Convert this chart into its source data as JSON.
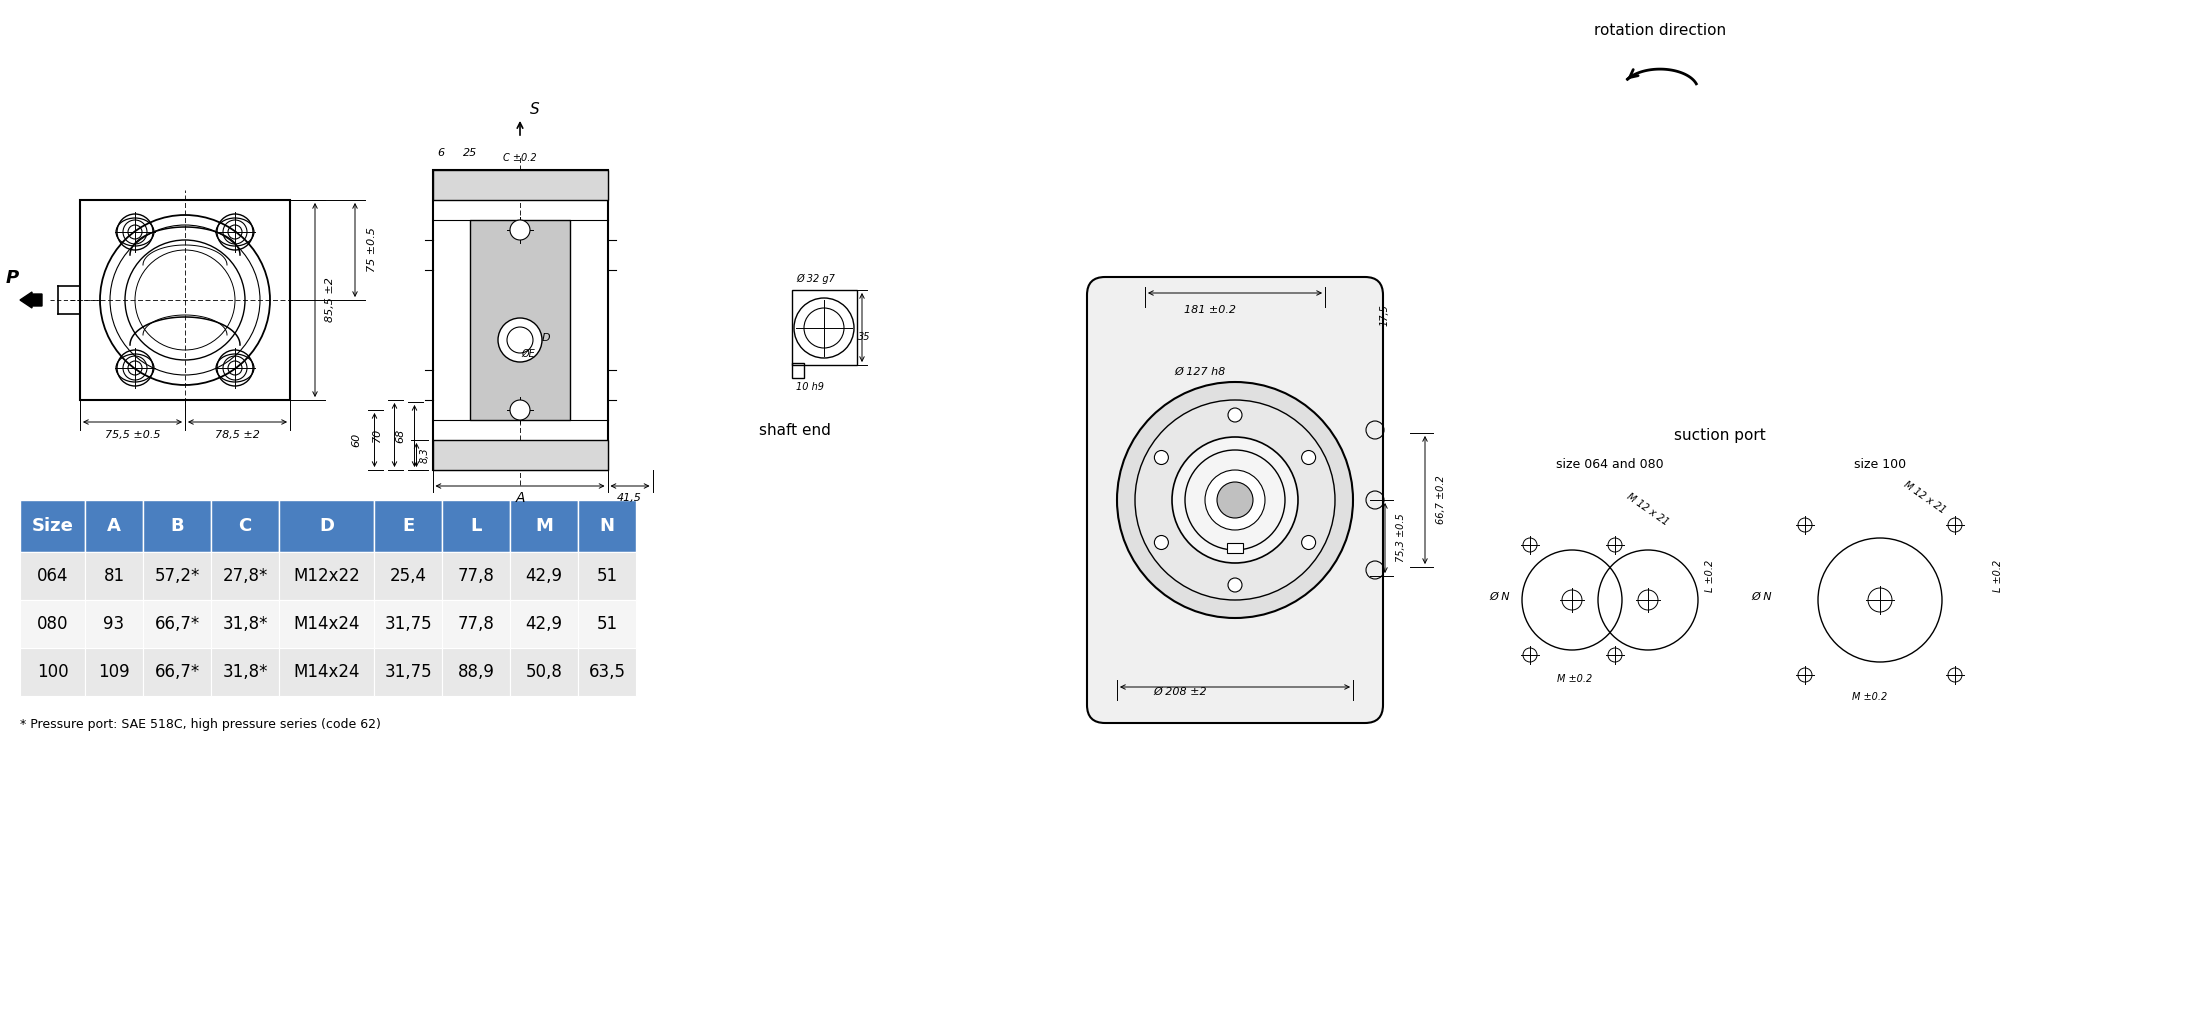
{
  "table_headers": [
    "Size",
    "A",
    "B",
    "C",
    "D",
    "E",
    "L",
    "M",
    "N"
  ],
  "table_rows": [
    [
      "064",
      "81",
      "57,2*",
      "27,8*",
      "M12x22",
      "25,4",
      "77,8",
      "42,9",
      "51"
    ],
    [
      "080",
      "93",
      "66,7*",
      "31,8*",
      "M14x24",
      "31,75",
      "77,8",
      "42,9",
      "51"
    ],
    [
      "100",
      "109",
      "66,7*",
      "31,8*",
      "M14x24",
      "31,75",
      "88,9",
      "50,8",
      "63,5"
    ]
  ],
  "header_bg": "#4a7fc0",
  "header_fg": "#ffffff",
  "row_bg_even": "#e8e8e8",
  "row_bg_odd": "#f5f5f5",
  "footnote": "* Pressure port: SAE 518C, high pressure series (code 62)",
  "title_rotation": "rotation direction",
  "title_shaft": "shaft end",
  "title_suction": "suction port",
  "suction_sub1": "size 064 and 080",
  "suction_sub2": "size 100",
  "bg_color": "#ffffff"
}
